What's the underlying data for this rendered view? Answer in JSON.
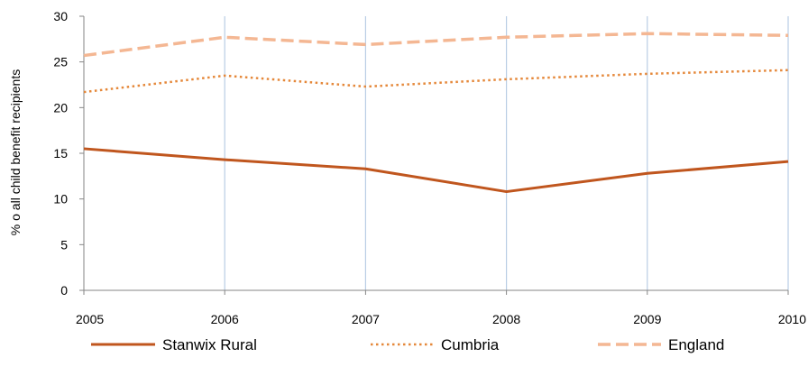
{
  "chart_data": {
    "type": "line",
    "ylabel": "% o all child benefit recipients",
    "xlabel": "",
    "x": [
      "2005",
      "2006",
      "2007",
      "2008",
      "2009",
      "2010"
    ],
    "ylim": [
      0,
      30
    ],
    "yticks": [
      0,
      5,
      10,
      15,
      20,
      25,
      30
    ],
    "grid": "vertical",
    "legend": "bottom",
    "series": [
      {
        "name": "Stanwix Rural",
        "values": [
          15.5,
          14.3,
          13.3,
          10.8,
          12.8,
          14.1
        ],
        "color": "#c0561e",
        "style": "solid"
      },
      {
        "name": "Cumbria",
        "values": [
          21.7,
          23.5,
          22.3,
          23.1,
          23.7,
          24.1
        ],
        "color": "#e5883a",
        "style": "dotted"
      },
      {
        "name": "England",
        "values": [
          25.7,
          27.7,
          26.9,
          27.7,
          28.1,
          27.9
        ],
        "color": "#f4b793",
        "style": "dashed"
      }
    ]
  }
}
